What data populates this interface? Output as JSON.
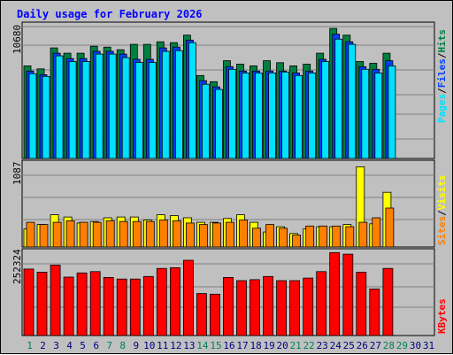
{
  "title": "Daily usage for February 2026",
  "colors": {
    "hits": "#008040",
    "files": "#0040ff",
    "pages": "#00e0ff",
    "visits": "#ffff00",
    "sites": "#ff8000",
    "kbytes": "#ff0000",
    "weekend_label": "#00805c",
    "weekday_label": "#000080",
    "title": "#0000ff"
  },
  "legend_top": {
    "pages": "Pages",
    "files": "Files",
    "hits": "Hits",
    "sep": "/"
  },
  "legend_mid": {
    "sites": "Sites",
    "visits": "Visits",
    "sep": "/"
  },
  "legend_bottom": {
    "kbytes": "KBytes"
  },
  "chart_data": [
    {
      "type": "bar",
      "panel": "hits-files-pages",
      "categories": [
        "1",
        "2",
        "3",
        "4",
        "5",
        "6",
        "7",
        "8",
        "9",
        "10",
        "11",
        "12",
        "13",
        "14",
        "15",
        "16",
        "17",
        "18",
        "19",
        "20",
        "21",
        "22",
        "23",
        "24",
        "25",
        "26",
        "27",
        "28",
        "29",
        "30",
        "31"
      ],
      "max_label": "10680",
      "ylim": [
        0,
        10680
      ],
      "series": [
        {
          "name": "Hits",
          "values": [
            7550,
            7300,
            9010,
            8580,
            8580,
            9150,
            9080,
            8860,
            9300,
            9300,
            9510,
            9440,
            10050,
            6760,
            6260,
            7970,
            7690,
            7550,
            7970,
            7810,
            7550,
            7690,
            8580,
            10600,
            10050,
            7900,
            7760,
            8580,
            null,
            null,
            null
          ]
        },
        {
          "name": "Files",
          "values": [
            7120,
            6830,
            8580,
            8150,
            8150,
            8730,
            8730,
            8510,
            8080,
            8080,
            9010,
            9080,
            9650,
            6340,
            5840,
            7480,
            7120,
            7120,
            7120,
            7120,
            6970,
            7120,
            8080,
            10130,
            9510,
            7480,
            7270,
            7970,
            null,
            null,
            null
          ]
        },
        {
          "name": "Pages",
          "values": [
            6910,
            6690,
            8360,
            7900,
            7900,
            8510,
            8510,
            8220,
            7830,
            7830,
            8730,
            8790,
            9440,
            6050,
            5630,
            7270,
            6970,
            6970,
            6970,
            7050,
            6760,
            6970,
            7900,
            9730,
            9300,
            7270,
            6970,
            7550,
            null,
            null,
            null
          ]
        }
      ]
    },
    {
      "type": "bar",
      "panel": "visits-sites",
      "categories": [
        "1",
        "2",
        "3",
        "4",
        "5",
        "6",
        "7",
        "8",
        "9",
        "10",
        "11",
        "12",
        "13",
        "14",
        "15",
        "16",
        "17",
        "18",
        "19",
        "20",
        "21",
        "22",
        "23",
        "24",
        "25",
        "26",
        "27",
        "28",
        "29",
        "30",
        "31"
      ],
      "max_label": "1087",
      "ylim": [
        0,
        1087
      ],
      "series": [
        {
          "name": "Visits",
          "values": [
            240,
            300,
            430,
            400,
            320,
            340,
            390,
            400,
            400,
            360,
            430,
            420,
            390,
            330,
            330,
            380,
            430,
            330,
            200,
            270,
            180,
            240,
            270,
            270,
            300,
            1070,
            310,
            730,
            null,
            null,
            null
          ]
        },
        {
          "name": "Sites",
          "values": [
            330,
            300,
            330,
            350,
            330,
            330,
            350,
            340,
            340,
            340,
            360,
            350,
            320,
            300,
            320,
            330,
            360,
            250,
            300,
            250,
            160,
            280,
            280,
            280,
            270,
            330,
            390,
            520,
            null,
            null,
            null
          ]
        }
      ]
    },
    {
      "type": "bar",
      "panel": "kbytes",
      "categories": [
        "1",
        "2",
        "3",
        "4",
        "5",
        "6",
        "7",
        "8",
        "9",
        "10",
        "11",
        "12",
        "13",
        "14",
        "15",
        "16",
        "17",
        "18",
        "19",
        "20",
        "21",
        "22",
        "23",
        "24",
        "25",
        "26",
        "27",
        "28",
        "29",
        "30",
        "31"
      ],
      "max_label": "252324",
      "ylim": [
        0,
        252324
      ],
      "series": [
        {
          "name": "KBytes",
          "values": [
            206000,
            196000,
            218000,
            181000,
            194000,
            198000,
            180000,
            175000,
            175000,
            183000,
            208000,
            210000,
            233000,
            130000,
            128000,
            180000,
            170000,
            173000,
            183000,
            170000,
            170000,
            178000,
            198000,
            257000,
            252000,
            196000,
            144000,
            208000,
            null,
            null,
            null
          ]
        }
      ]
    }
  ]
}
